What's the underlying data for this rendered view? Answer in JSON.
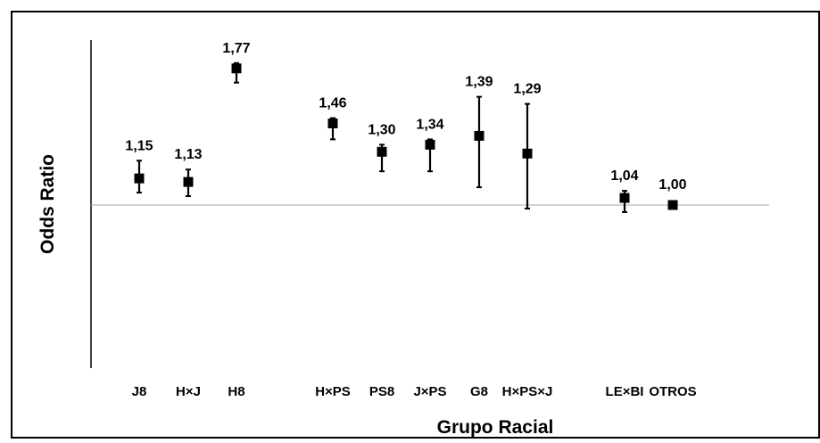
{
  "chart_data": {
    "type": "scatter",
    "title": "",
    "xlabel": "Grupo Racial",
    "ylabel": "Odds Ratio",
    "reference_line": 1.0,
    "ylim": [
      0.4,
      1.9
    ],
    "grid": false,
    "legend": "none",
    "colors": {
      "marker": "#000000",
      "frame": "#000000",
      "reference_line": "#aaaaaa"
    },
    "points": [
      {
        "category": "J8",
        "value": 1.15,
        "label": "1,15",
        "ci": [
          1.07,
          1.25
        ]
      },
      {
        "category": "H×J",
        "value": 1.13,
        "label": "1,13",
        "ci": [
          1.05,
          1.2
        ]
      },
      {
        "category": "H8",
        "value": 1.77,
        "label": "1,77",
        "ci": [
          1.69,
          1.8
        ]
      },
      {
        "category": "H×PS",
        "value": 1.46,
        "label": "1,46",
        "ci": [
          1.37,
          1.49
        ]
      },
      {
        "category": "PS8",
        "value": 1.3,
        "label": "1,30",
        "ci": [
          1.19,
          1.34
        ]
      },
      {
        "category": "J×PS",
        "value": 1.34,
        "label": "1,34",
        "ci": [
          1.19,
          1.37
        ]
      },
      {
        "category": "G8",
        "value": 1.39,
        "label": "1,39",
        "ci": [
          1.1,
          1.61
        ]
      },
      {
        "category": "H×PS×J",
        "value": 1.29,
        "label": "1,29",
        "ci": [
          0.98,
          1.57
        ]
      },
      {
        "category": "LE×BI",
        "value": 1.04,
        "label": "1,04",
        "ci": [
          0.96,
          1.08
        ]
      },
      {
        "category": "OTROS",
        "value": 1.0,
        "label": "1,00",
        "ci": [
          1.0,
          1.0
        ]
      }
    ]
  }
}
